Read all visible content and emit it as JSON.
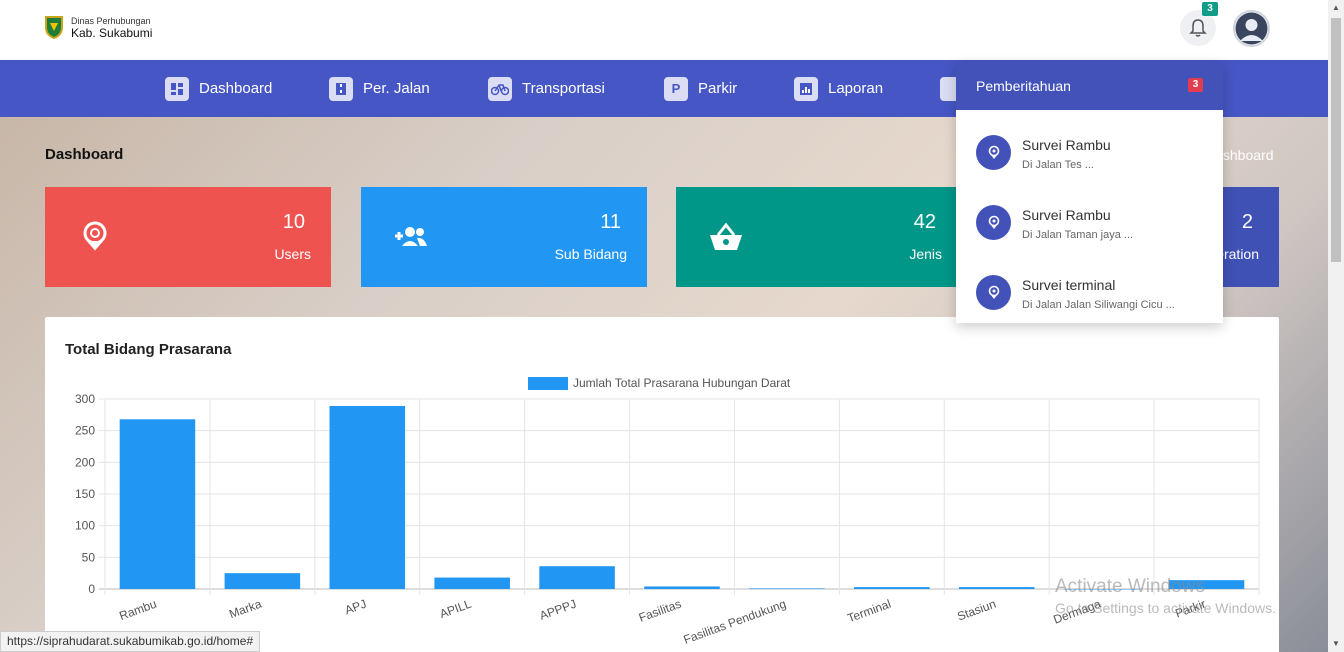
{
  "header": {
    "logo_line1": "Dinas Perhubungan",
    "logo_line2": "Kab. Sukabumi",
    "notification_count": "3"
  },
  "nav": {
    "items": [
      {
        "label": "Dashboard",
        "icon": "dashboard-icon"
      },
      {
        "label": "Per. Jalan",
        "icon": "road-icon"
      },
      {
        "label": "Transportasi",
        "icon": "bicycle-icon"
      },
      {
        "label": "Parkir",
        "icon": "parking-icon"
      },
      {
        "label": "Laporan",
        "icon": "report-icon"
      }
    ]
  },
  "page": {
    "title": "Dashboard",
    "breadcrumb": "Dashboard"
  },
  "cards": [
    {
      "value": "10",
      "label": "Users",
      "color": "#ef5350"
    },
    {
      "value": "11",
      "label": "Sub Bidang",
      "color": "#2196f3"
    },
    {
      "value": "42",
      "label": "Jenis",
      "color": "#009688"
    },
    {
      "value": "2",
      "label": "Operation",
      "color": "#3f51b5"
    }
  ],
  "panel": {
    "title": "Total Bidang Prasarana"
  },
  "chart_data": {
    "type": "bar",
    "categories": [
      "Rambu",
      "Marka",
      "APJ",
      "APILL",
      "APPPJ",
      "Fasilitas",
      "Fasilitas Pendukung",
      "Terminal",
      "Stasiun",
      "Dermaga",
      "Parkir"
    ],
    "series": [
      {
        "name": "Jumlah Total Prasarana Hubungan Darat",
        "values": [
          268,
          25,
          289,
          18,
          36,
          4,
          1,
          3,
          3,
          0,
          14
        ],
        "color": "#2196f3"
      }
    ],
    "ylim": [
      0,
      300
    ],
    "yticks": [
      0,
      50,
      100,
      150,
      200,
      250,
      300
    ],
    "grid": true,
    "legend": "top"
  },
  "notifications": {
    "header": "Pemberitahuan",
    "count": "3",
    "items": [
      {
        "title": "Survei Rambu",
        "subtitle": "Di Jalan Tes ..."
      },
      {
        "title": "Survei Rambu",
        "subtitle": "Di Jalan Taman jaya ..."
      },
      {
        "title": "Survei terminal",
        "subtitle": "Di Jalan Jalan Siliwangi Cicu ..."
      }
    ]
  },
  "status_bar": {
    "url": "https://siprahudarat.sukabumikab.go.id/home#"
  },
  "watermark": {
    "line1": "Activate Windows",
    "line2": "Go to Settings to activate Windows."
  }
}
